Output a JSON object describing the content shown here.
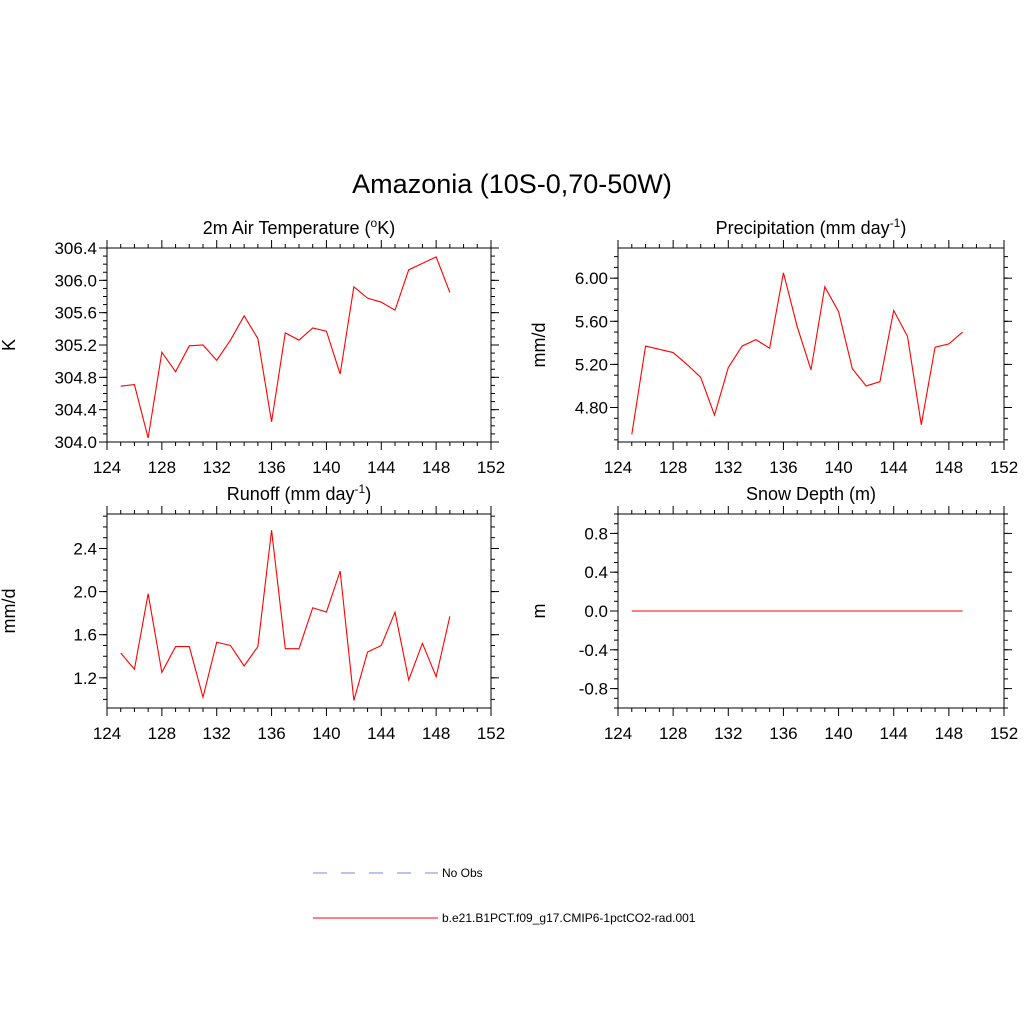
{
  "title": "Amazonia (10S-0,70-50W)",
  "colors": {
    "series": "#ff0000",
    "obs": "#9b9bf0",
    "axis": "#000000"
  },
  "legend": {
    "entries": [
      {
        "label": "No Obs",
        "style": "dashed",
        "color": "#9b9bf0"
      },
      {
        "label": "b.e21.B1PCT.f09_g17.CMIP6-1pctCO2-rad.001",
        "style": "solid",
        "color": "#ff0000"
      }
    ]
  },
  "chart_data": [
    {
      "type": "line",
      "title_main": "2m Air Temperature (",
      "title_sup": "o",
      "title_end": "K)",
      "ylabel": "K",
      "xlim": [
        124,
        152
      ],
      "ylim": [
        304.0,
        306.4
      ],
      "xticks": [
        "124",
        "128",
        "132",
        "136",
        "140",
        "144",
        "148",
        "152"
      ],
      "yticks": [
        {
          "v": 304.0,
          "label": "304.0"
        },
        {
          "v": 304.4,
          "label": "304.4"
        },
        {
          "v": 304.8,
          "label": "304.8"
        },
        {
          "v": 305.2,
          "label": "305.2"
        },
        {
          "v": 305.6,
          "label": "305.6"
        },
        {
          "v": 306.0,
          "label": "306.0"
        },
        {
          "v": 306.4,
          "label": "306.4"
        }
      ],
      "yminor": 0.1,
      "x": [
        125,
        126,
        127,
        128,
        129,
        130,
        131,
        132,
        133,
        134,
        135,
        136,
        137,
        138,
        139,
        140,
        141,
        142,
        143,
        144,
        145,
        146,
        147,
        148,
        149
      ],
      "values": [
        304.69,
        304.71,
        304.05,
        305.11,
        304.87,
        305.19,
        305.2,
        305.01,
        305.26,
        305.56,
        305.28,
        304.25,
        305.35,
        305.26,
        305.41,
        305.37,
        304.84,
        305.92,
        305.78,
        305.73,
        305.63,
        306.13,
        306.21,
        306.29,
        305.85
      ]
    },
    {
      "type": "line",
      "title_main": "Precipitation (mm day",
      "title_sup": "-1",
      "title_end": ")",
      "ylabel": "mm/d",
      "xlim": [
        124,
        152
      ],
      "ylim": [
        4.48,
        6.28
      ],
      "xticks": [
        "124",
        "128",
        "132",
        "136",
        "140",
        "144",
        "148",
        "152"
      ],
      "yticks": [
        {
          "v": 4.8,
          "label": "4.80"
        },
        {
          "v": 5.2,
          "label": "5.20"
        },
        {
          "v": 5.6,
          "label": "5.60"
        },
        {
          "v": 6.0,
          "label": "6.00"
        }
      ],
      "yminor": 0.1,
      "x": [
        125,
        126,
        127,
        128,
        129,
        130,
        131,
        132,
        133,
        134,
        135,
        136,
        137,
        138,
        139,
        140,
        141,
        142,
        143,
        144,
        145,
        146,
        147,
        148,
        149
      ],
      "values": [
        4.55,
        5.37,
        5.34,
        5.31,
        5.2,
        5.08,
        4.73,
        5.17,
        5.37,
        5.43,
        5.35,
        6.05,
        5.55,
        5.15,
        5.92,
        5.69,
        5.16,
        5.0,
        5.04,
        5.7,
        5.46,
        4.64,
        5.36,
        5.39,
        5.5
      ]
    },
    {
      "type": "line",
      "title_main": "Runoff (mm day",
      "title_sup": "-1",
      "title_end": ")",
      "ylabel": "mm/d",
      "xlim": [
        124,
        152
      ],
      "ylim": [
        0.92,
        2.72
      ],
      "xticks": [
        "124",
        "128",
        "132",
        "136",
        "140",
        "144",
        "148",
        "152"
      ],
      "yticks": [
        {
          "v": 1.2,
          "label": "1.2"
        },
        {
          "v": 1.6,
          "label": "1.6"
        },
        {
          "v": 2.0,
          "label": "2.0"
        },
        {
          "v": 2.4,
          "label": "2.4"
        }
      ],
      "yminor": 0.1,
      "x": [
        125,
        126,
        127,
        128,
        129,
        130,
        131,
        132,
        133,
        134,
        135,
        136,
        137,
        138,
        139,
        140,
        141,
        142,
        143,
        144,
        145,
        146,
        147,
        148,
        149
      ],
      "values": [
        1.43,
        1.28,
        1.98,
        1.25,
        1.49,
        1.49,
        1.02,
        1.53,
        1.5,
        1.31,
        1.49,
        2.57,
        1.47,
        1.47,
        1.85,
        1.81,
        2.19,
        0.99,
        1.44,
        1.5,
        1.81,
        1.18,
        1.52,
        1.21,
        1.77
      ]
    },
    {
      "type": "line",
      "title_main": "Snow Depth (m)",
      "title_sup": "",
      "title_end": "",
      "ylabel": "m",
      "xlim": [
        124,
        152
      ],
      "ylim": [
        -1.0,
        1.0
      ],
      "xticks": [
        "124",
        "128",
        "132",
        "136",
        "140",
        "144",
        "148",
        "152"
      ],
      "yticks": [
        {
          "v": -0.8,
          "label": "-0.8"
        },
        {
          "v": -0.4,
          "label": "-0.4"
        },
        {
          "v": 0.0,
          "label": "0.0"
        },
        {
          "v": 0.4,
          "label": "0.4"
        },
        {
          "v": 0.8,
          "label": "0.8"
        }
      ],
      "yminor": 0.1,
      "x": [
        125,
        126,
        127,
        128,
        129,
        130,
        131,
        132,
        133,
        134,
        135,
        136,
        137,
        138,
        139,
        140,
        141,
        142,
        143,
        144,
        145,
        146,
        147,
        148,
        149
      ],
      "values": [
        0,
        0,
        0,
        0,
        0,
        0,
        0,
        0,
        0,
        0,
        0,
        0,
        0,
        0,
        0,
        0,
        0,
        0,
        0,
        0,
        0,
        0,
        0,
        0,
        0
      ]
    }
  ]
}
